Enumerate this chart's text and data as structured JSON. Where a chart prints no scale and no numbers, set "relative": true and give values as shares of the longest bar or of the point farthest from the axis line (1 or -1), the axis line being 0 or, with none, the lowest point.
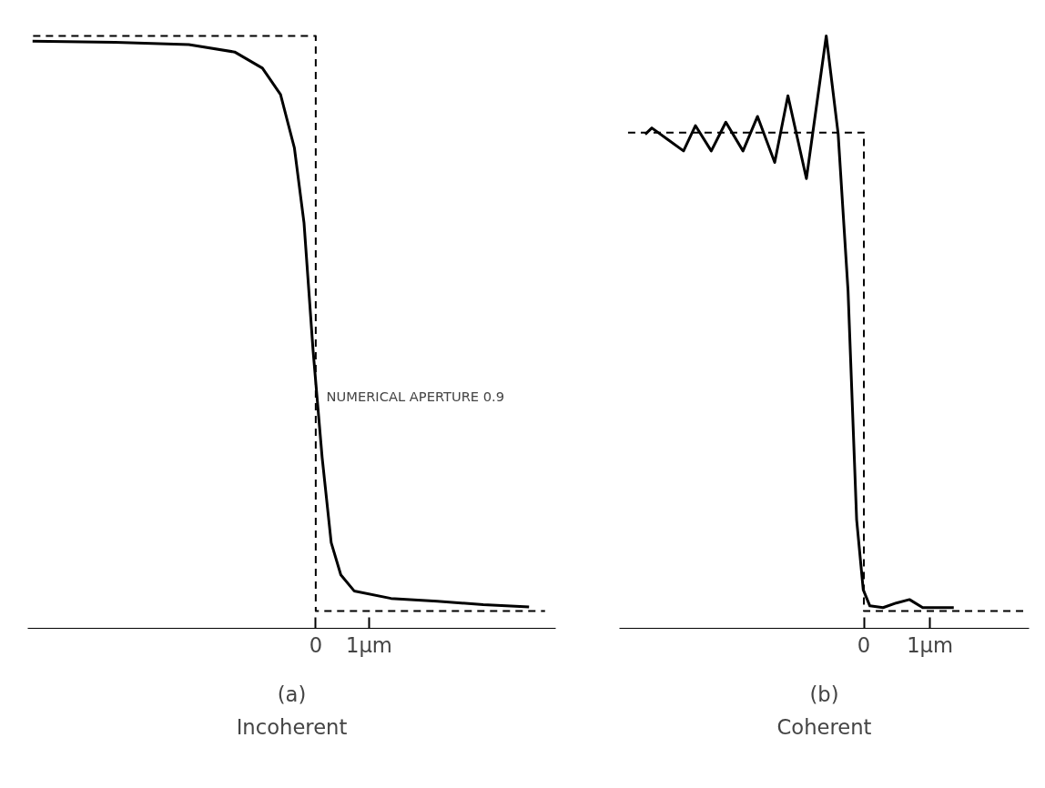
{
  "chart_data": [
    {
      "type": "line",
      "relative": true,
      "xlabel": "(a)",
      "annotations": [
        "Incoherent",
        "NUMERICAL APERTURE    0.9"
      ],
      "xlim": [
        -5.4,
        4.5
      ],
      "xticks": [
        0,
        {
          "value": 1,
          "label": "1µm"
        }
      ],
      "grid": false,
      "tick_labels": "x",
      "series": [
        {
          "color": "#000000",
          "line_style": "solid",
          "x": [
            -5.31,
            -3.76,
            -2.38,
            -1.52,
            -1.0,
            -0.66,
            -0.4,
            -0.22,
            -0.05,
            0.12,
            0.29,
            0.47,
            0.72,
            1.41,
            2.28,
            3.14,
            4.0
          ],
          "values": [
            0.991,
            0.989,
            0.985,
            0.972,
            0.944,
            0.898,
            0.805,
            0.675,
            0.453,
            0.267,
            0.119,
            0.063,
            0.035,
            0.022,
            0.017,
            0.011,
            0.007
          ]
        },
        {
          "color": "#000000",
          "line_style": "dashed",
          "x": [
            -5.3,
            0,
            0,
            4.3
          ],
          "values": [
            1,
            1,
            0,
            0
          ]
        }
      ]
    },
    {
      "type": "line",
      "relative": true,
      "xlabel": "(b)",
      "annotations": [
        "Coherent"
      ],
      "xlim": [
        -3.7,
        2.5
      ],
      "xticks": [
        0,
        {
          "value": 1,
          "label": "1µm"
        }
      ],
      "grid": false,
      "tick_labels": "x",
      "series": [
        {
          "color": "#000000",
          "line_style": "solid",
          "x": [
            -3.31,
            -3.21,
            -2.97,
            -2.73,
            -2.55,
            -2.31,
            -2.09,
            -1.83,
            -1.61,
            -1.35,
            -1.15,
            -0.87,
            -0.57,
            -0.39,
            -0.24,
            -0.11,
            -0.01,
            0.09,
            0.29,
            0.49,
            0.69,
            0.89,
            1.16,
            1.36
          ],
          "values": [
            0.829,
            0.84,
            0.82,
            0.8,
            0.844,
            0.8,
            0.85,
            0.8,
            0.86,
            0.78,
            0.896,
            0.752,
            1.0,
            0.83,
            0.557,
            0.159,
            0.037,
            0.009,
            0.006,
            0.014,
            0.02,
            0.006,
            0.006,
            0.006
          ]
        },
        {
          "color": "#000000",
          "line_style": "dashed",
          "x": [
            -3.57,
            0,
            0,
            2.47
          ],
          "values": [
            0.832,
            0.832,
            0,
            0
          ]
        }
      ]
    }
  ]
}
